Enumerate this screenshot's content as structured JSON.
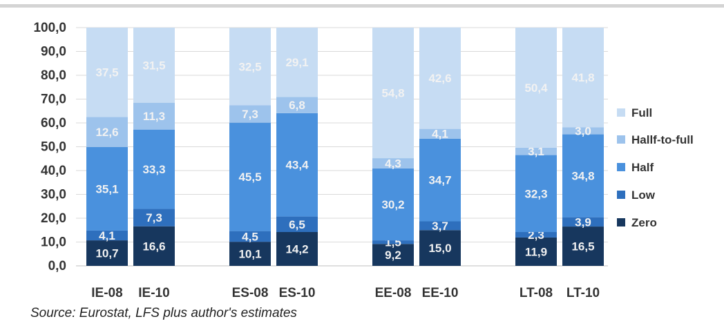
{
  "chart_data": {
    "type": "bar",
    "stacked": true,
    "categories": [
      "IE-08",
      "IE-10",
      "ES-08",
      "ES-10",
      "EE-08",
      "EE-10",
      "LT-08",
      "LT-10"
    ],
    "series": [
      {
        "name": "Zero",
        "color": "#17375e",
        "values": [
          10.7,
          16.6,
          10.1,
          14.2,
          9.2,
          15.0,
          11.9,
          16.5
        ],
        "labels": [
          "10,7",
          "16,6",
          "10,1",
          "14,2",
          "9,2",
          "15,0",
          "11,9",
          "16,5"
        ]
      },
      {
        "name": "Low",
        "color": "#2e6fbd",
        "values": [
          4.1,
          7.3,
          4.5,
          6.5,
          1.5,
          3.7,
          2.3,
          3.9
        ],
        "labels": [
          "4,1",
          "7,3",
          "4,5",
          "6,5",
          "1,5",
          "3,7",
          "2,3",
          "3,9"
        ]
      },
      {
        "name": "Half",
        "color": "#4a91dd",
        "values": [
          35.1,
          33.3,
          45.5,
          43.4,
          30.2,
          34.7,
          32.3,
          34.8
        ],
        "labels": [
          "35,1",
          "33,3",
          "45,5",
          "43,4",
          "30,2",
          "34,7",
          "32,3",
          "34,8"
        ]
      },
      {
        "name": "Hallf-to-full",
        "color": "#9dc3ec",
        "values": [
          12.6,
          11.3,
          7.3,
          6.8,
          4.3,
          4.1,
          3.1,
          3.0
        ],
        "labels": [
          "12,6",
          "11,3",
          "7,3",
          "6,8",
          "4,3",
          "4,1",
          "3,1",
          "3,0"
        ]
      },
      {
        "name": "Full",
        "color": "#c6dcf3",
        "values": [
          37.5,
          31.5,
          32.5,
          29.1,
          54.8,
          42.6,
          50.4,
          41.8
        ],
        "labels": [
          "37,5",
          "31,5",
          "32,5",
          "29,1",
          "54,8",
          "42,6",
          "50,4",
          "41,8"
        ]
      }
    ],
    "yticks": [
      "0,0",
      "10,0",
      "20,0",
      "30,0",
      "40,0",
      "50,0",
      "60,0",
      "70,0",
      "80,0",
      "90,0",
      "100,0"
    ],
    "ylim": [
      0,
      100
    ],
    "grid": true,
    "legend_position": "right",
    "grid_color": "#d9d9d9"
  },
  "source": "Source: Eurostat, LFS plus author's estimates"
}
